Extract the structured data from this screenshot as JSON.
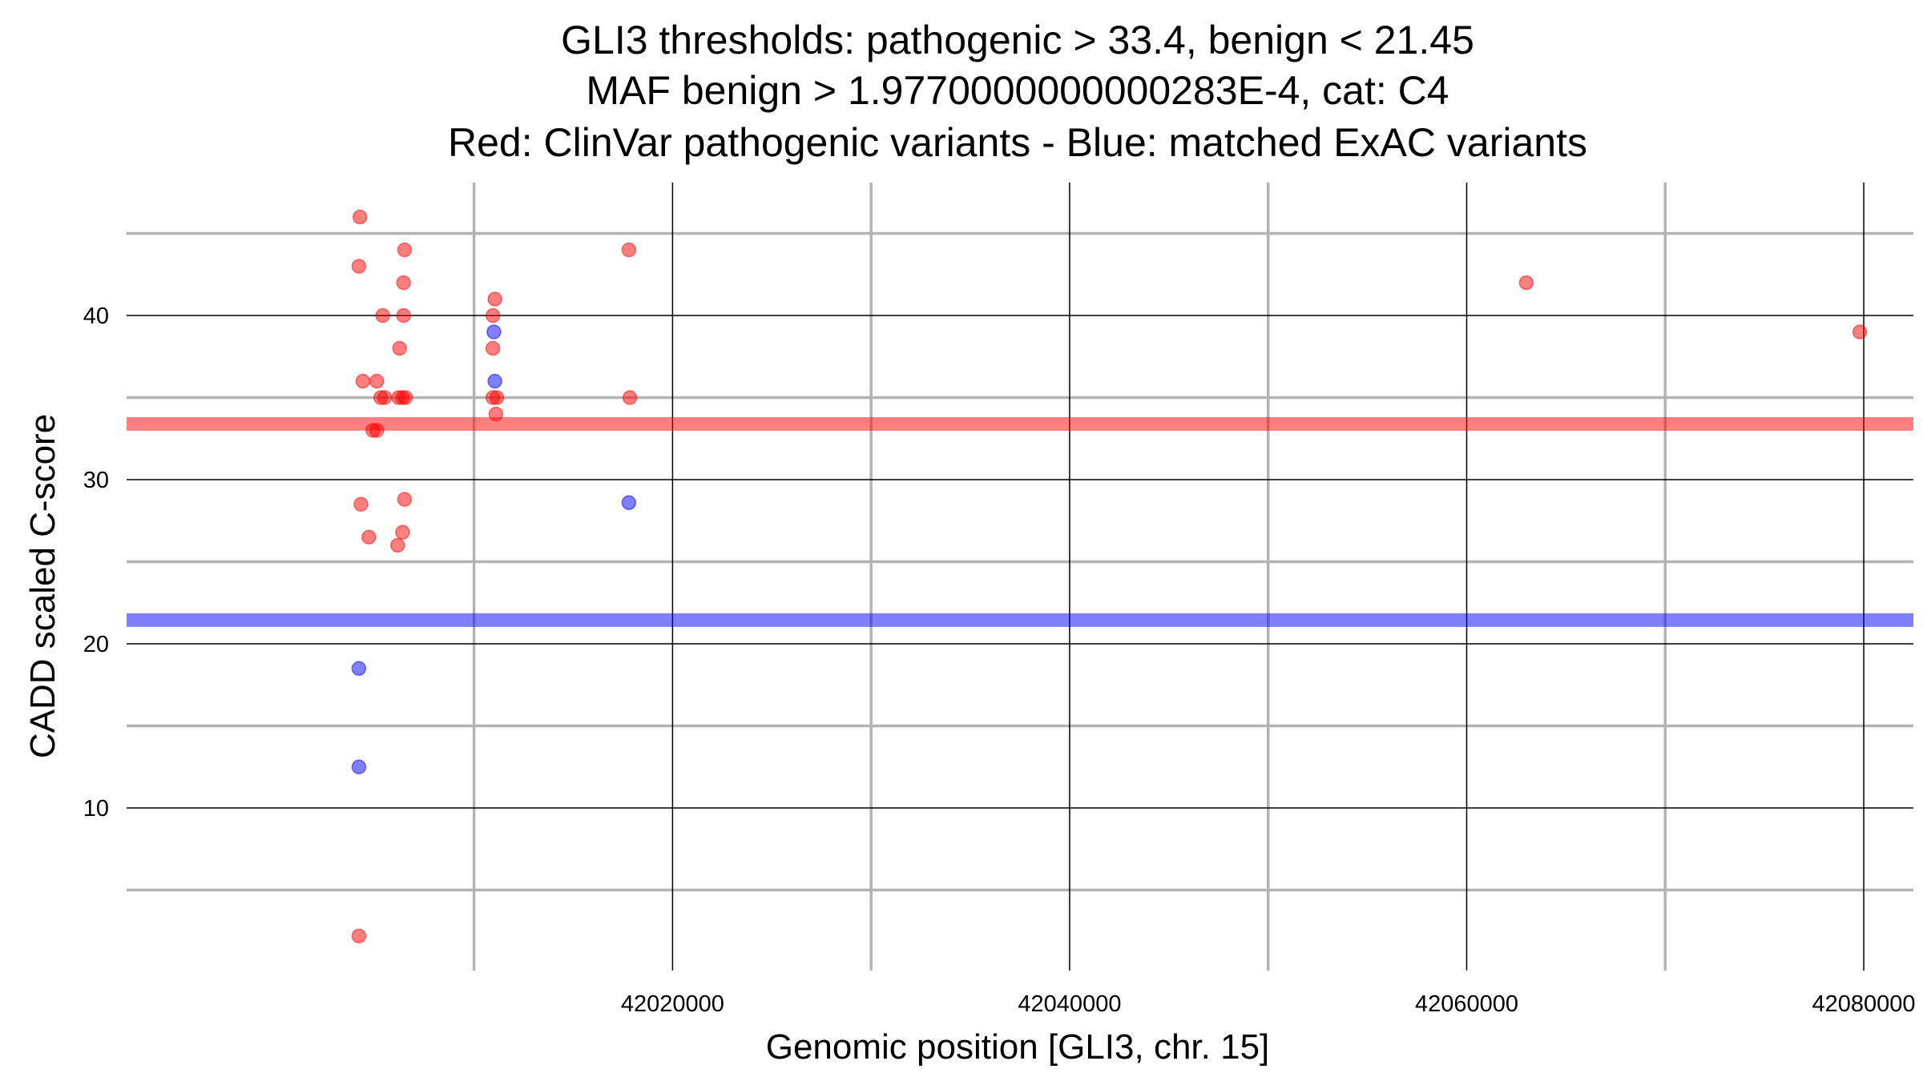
{
  "chart_data": {
    "type": "scatter",
    "title_lines": [
      "GLI3 thresholds: pathogenic > 33.4, benign < 21.45",
      "MAF benign > 1.9770000000000283E-4, cat: C4",
      "Red: ClinVar pathogenic variants - Blue: matched ExAC variants"
    ],
    "xlabel": "Genomic position [GLI3, chr. 15]",
    "ylabel": "CADD scaled C-score",
    "xlim": [
      41992500,
      42082500
    ],
    "ylim": [
      0.1,
      48.1
    ],
    "x_ticks": [
      42020000,
      42040000,
      42060000,
      42080000
    ],
    "x_tick_labels": [
      "42020000",
      "42040000",
      "42060000",
      "42080000"
    ],
    "x_minor_ticks": [
      42010000,
      42030000,
      42050000,
      42070000
    ],
    "y_ticks": [
      10,
      20,
      30,
      40
    ],
    "y_tick_labels": [
      "10",
      "20",
      "30",
      "40"
    ],
    "y_minor_ticks": [
      5,
      15,
      25,
      35,
      45
    ],
    "thresholds": [
      {
        "name": "pathogenic",
        "value": 33.4,
        "color": "#ff0000"
      },
      {
        "name": "benign",
        "value": 21.45,
        "color": "#0000ff"
      }
    ],
    "series": [
      {
        "name": "ClinVar pathogenic variants",
        "color": "#ff0000",
        "points": [
          {
            "x": 42004250,
            "y": 46.0
          },
          {
            "x": 42004200,
            "y": 43.0
          },
          {
            "x": 42004400,
            "y": 36.0
          },
          {
            "x": 42004300,
            "y": 28.5
          },
          {
            "x": 42004700,
            "y": 26.5
          },
          {
            "x": 42004200,
            "y": 2.2
          },
          {
            "x": 42005100,
            "y": 36.0
          },
          {
            "x": 42005400,
            "y": 40.0
          },
          {
            "x": 42005300,
            "y": 35.0
          },
          {
            "x": 42005500,
            "y": 35.0
          },
          {
            "x": 42004900,
            "y": 33.0
          },
          {
            "x": 42005100,
            "y": 33.0
          },
          {
            "x": 42006500,
            "y": 44.0
          },
          {
            "x": 42006450,
            "y": 42.0
          },
          {
            "x": 42006450,
            "y": 40.0
          },
          {
            "x": 42006250,
            "y": 38.0
          },
          {
            "x": 42006200,
            "y": 35.0
          },
          {
            "x": 42006400,
            "y": 35.0
          },
          {
            "x": 42006550,
            "y": 35.0
          },
          {
            "x": 42006500,
            "y": 28.8
          },
          {
            "x": 42006400,
            "y": 26.8
          },
          {
            "x": 42006150,
            "y": 26.0
          },
          {
            "x": 42011050,
            "y": 41.0
          },
          {
            "x": 42010950,
            "y": 40.0
          },
          {
            "x": 42010950,
            "y": 38.0
          },
          {
            "x": 42010950,
            "y": 35.0
          },
          {
            "x": 42011150,
            "y": 35.0
          },
          {
            "x": 42011100,
            "y": 34.0
          },
          {
            "x": 42017800,
            "y": 44.0
          },
          {
            "x": 42017850,
            "y": 35.0
          },
          {
            "x": 42063000,
            "y": 42.0
          },
          {
            "x": 42079800,
            "y": 39.0
          }
        ]
      },
      {
        "name": "matched ExAC variants",
        "color": "#0000ff",
        "points": [
          {
            "x": 42011000,
            "y": 39.0
          },
          {
            "x": 42011050,
            "y": 36.0
          },
          {
            "x": 42017800,
            "y": 28.6
          },
          {
            "x": 42004200,
            "y": 18.5
          },
          {
            "x": 42004200,
            "y": 12.5
          }
        ]
      }
    ]
  }
}
